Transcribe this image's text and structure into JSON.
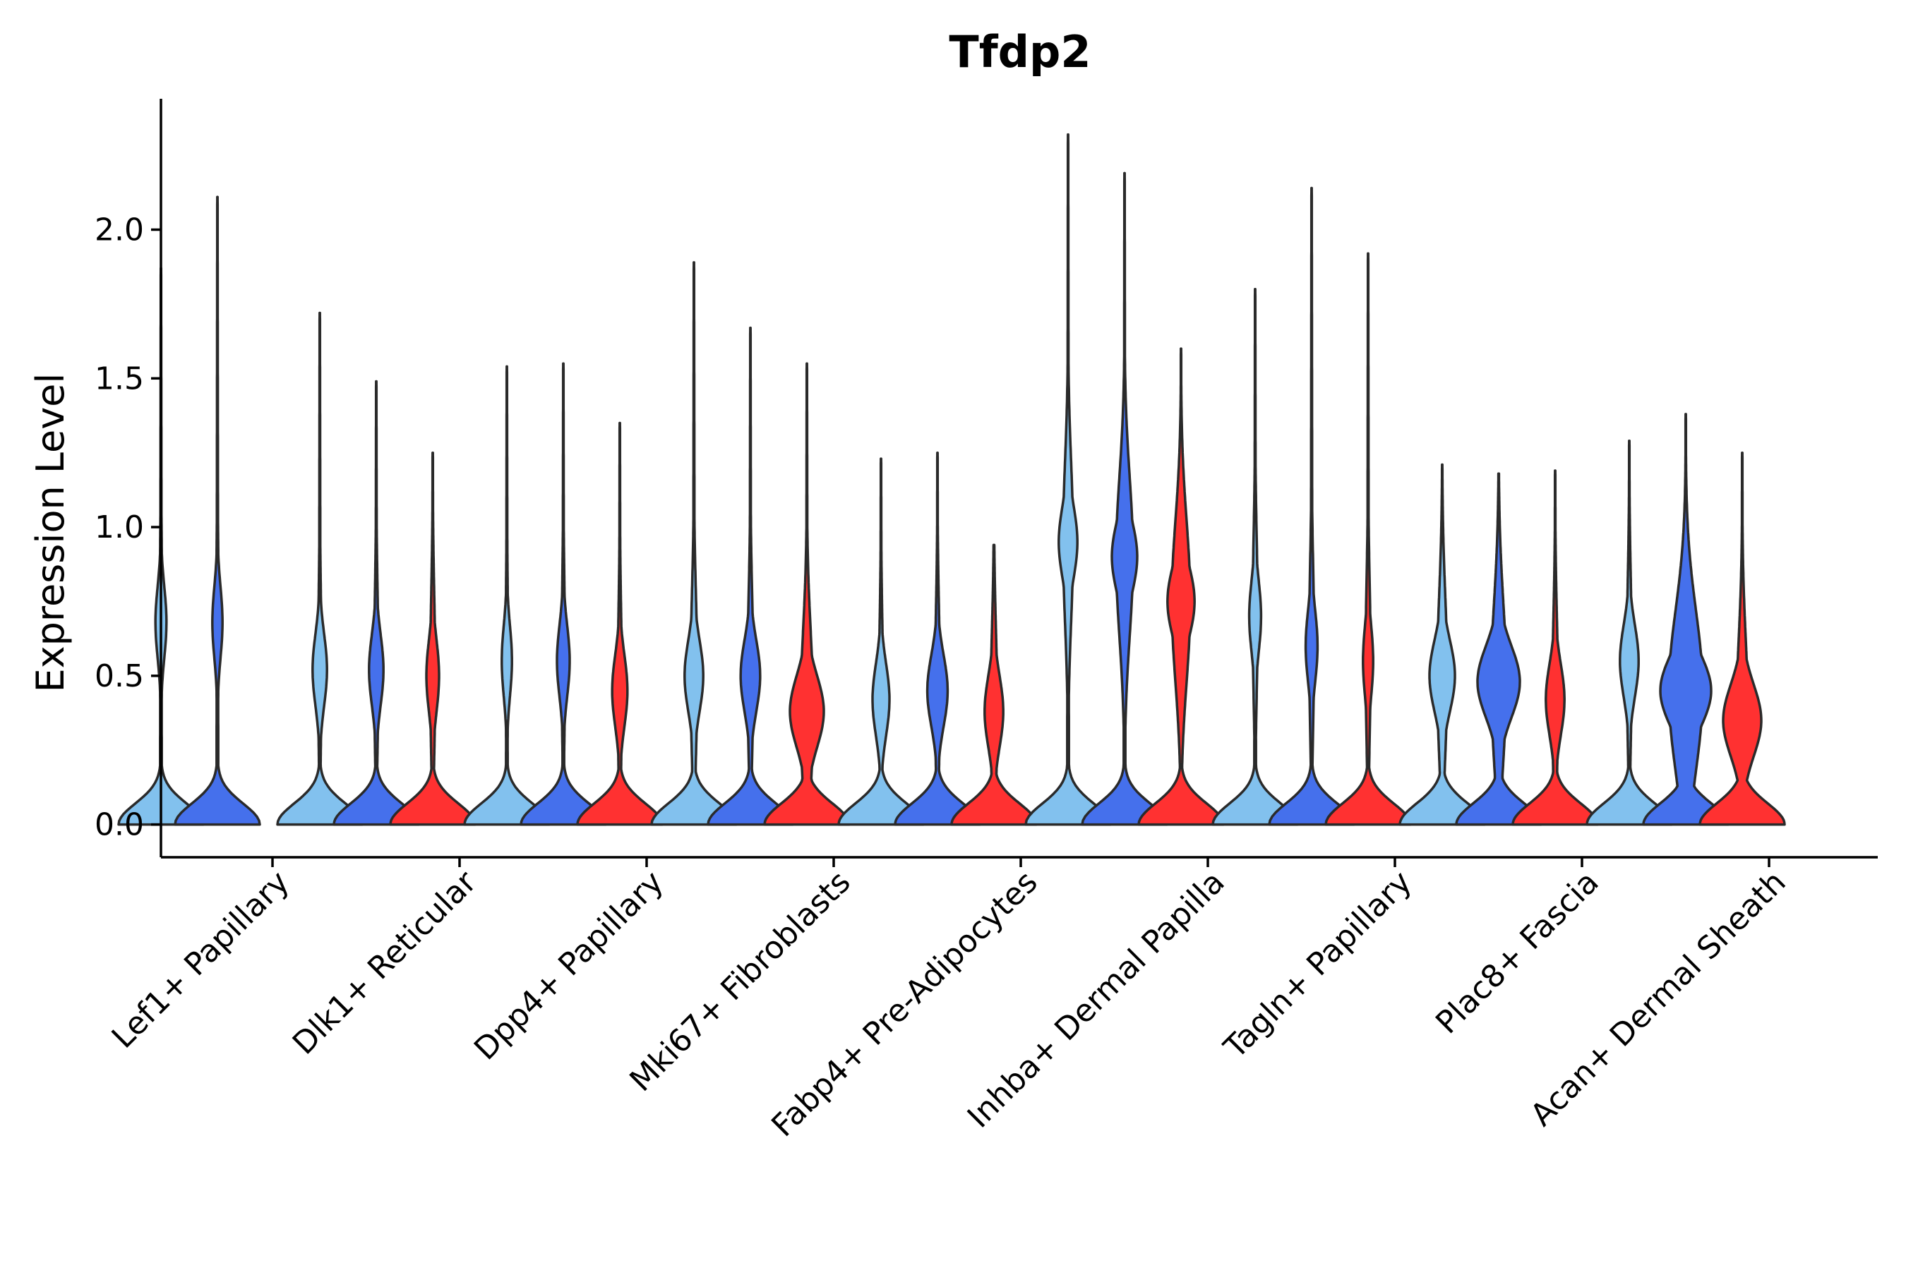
{
  "chart_data": {
    "type": "violin",
    "title": "Tfdp2",
    "xlabel": "",
    "ylabel": "Expression Level",
    "ylim": [
      -0.11,
      2.44
    ],
    "yticks": [
      0.0,
      0.5,
      1.0,
      1.5,
      2.0
    ],
    "ytick_labels": [
      "0.0",
      "0.5",
      "1.0",
      "1.5",
      "2.0"
    ],
    "grid": false,
    "legend": "none",
    "series_colors": [
      "#82C1EE",
      "#4570EC",
      "#FF3131"
    ],
    "categories": [
      "Lef1+ Papillary",
      "Dlk1+ Reticular",
      "Dpp4+ Papillary",
      "Mki67+ Fibroblasts",
      "Fabp4+ Pre-Adipocytes",
      "Inhba+ Dermal Papilla",
      "Tagln+ Papillary",
      "Plac8+ Fascia",
      "Acan+ Dermal Sheath"
    ],
    "groups": [
      {
        "category": "Lef1+ Papillary",
        "violins": [
          {
            "series": 0,
            "max": 1.87,
            "mode": 0.68,
            "mode_width": 0.13,
            "mid_width": 0.03
          },
          {
            "series": 1,
            "max": 2.11,
            "mode": 0.68,
            "mode_width": 0.12,
            "mid_width": 0.03
          }
        ]
      },
      {
        "category": "Dlk1+ Reticular",
        "violins": [
          {
            "series": 0,
            "max": 1.72,
            "mode": 0.52,
            "mode_width": 0.17,
            "mid_width": 0.04
          },
          {
            "series": 1,
            "max": 1.49,
            "mode": 0.52,
            "mode_width": 0.17,
            "mid_width": 0.05
          },
          {
            "series": 2,
            "max": 1.25,
            "mode": 0.5,
            "mode_width": 0.15,
            "mid_width": 0.06
          }
        ]
      },
      {
        "category": "Dpp4+ Papillary",
        "violins": [
          {
            "series": 0,
            "max": 1.54,
            "mode": 0.55,
            "mode_width": 0.12,
            "mid_width": 0.03
          },
          {
            "series": 1,
            "max": 1.55,
            "mode": 0.55,
            "mode_width": 0.15,
            "mid_width": 0.04
          },
          {
            "series": 2,
            "max": 1.35,
            "mode": 0.45,
            "mode_width": 0.18,
            "mid_width": 0.05
          }
        ]
      },
      {
        "category": "Mki67+ Fibroblasts",
        "violins": [
          {
            "series": 0,
            "max": 1.89,
            "mode": 0.5,
            "mode_width": 0.22,
            "mid_width": 0.08
          },
          {
            "series": 1,
            "max": 1.67,
            "mode": 0.5,
            "mode_width": 0.23,
            "mid_width": 0.07
          },
          {
            "series": 2,
            "max": 1.55,
            "mode": 0.38,
            "mode_width": 0.4,
            "mid_width": 0.15
          }
        ]
      },
      {
        "category": "Fabp4+ Pre-Adipocytes",
        "violins": [
          {
            "series": 0,
            "max": 1.23,
            "mode": 0.42,
            "mode_width": 0.2,
            "mid_width": 0.05
          },
          {
            "series": 1,
            "max": 1.25,
            "mode": 0.45,
            "mode_width": 0.24,
            "mid_width": 0.06
          },
          {
            "series": 2,
            "max": 0.94,
            "mode": 0.38,
            "mode_width": 0.22,
            "mid_width": 0.08
          }
        ]
      },
      {
        "category": "Inhba+ Dermal Papilla",
        "violins": [
          {
            "series": 0,
            "max": 2.32,
            "mode": 0.95,
            "mode_width": 0.22,
            "mid_width": 0.12
          },
          {
            "series": 1,
            "max": 2.19,
            "mode": 0.9,
            "mode_width": 0.3,
            "mid_width": 0.2
          },
          {
            "series": 2,
            "max": 1.6,
            "mode": 0.75,
            "mode_width": 0.32,
            "mid_width": 0.22
          }
        ]
      },
      {
        "category": "Tagln+ Papillary",
        "violins": [
          {
            "series": 0,
            "max": 1.8,
            "mode": 0.7,
            "mode_width": 0.14,
            "mid_width": 0.06
          },
          {
            "series": 1,
            "max": 2.14,
            "mode": 0.6,
            "mode_width": 0.14,
            "mid_width": 0.06
          },
          {
            "series": 2,
            "max": 1.92,
            "mode": 0.55,
            "mode_width": 0.12,
            "mid_width": 0.06
          }
        ]
      },
      {
        "category": "Plac8+ Fascia",
        "violins": [
          {
            "series": 0,
            "max": 1.21,
            "mode": 0.5,
            "mode_width": 0.3,
            "mid_width": 0.12
          },
          {
            "series": 1,
            "max": 1.18,
            "mode": 0.48,
            "mode_width": 0.5,
            "mid_width": 0.18
          },
          {
            "series": 2,
            "max": 1.19,
            "mode": 0.42,
            "mode_width": 0.22,
            "mid_width": 0.07
          }
        ]
      },
      {
        "category": "Acan+ Dermal Sheath",
        "violins": [
          {
            "series": 0,
            "max": 1.29,
            "mode": 0.55,
            "mode_width": 0.22,
            "mid_width": 0.06
          },
          {
            "series": 1,
            "max": 1.38,
            "mode": 0.45,
            "mode_width": 0.6,
            "mid_width": 0.4
          },
          {
            "series": 2,
            "max": 1.25,
            "mode": 0.35,
            "mode_width": 0.45,
            "mid_width": 0.14
          }
        ]
      }
    ]
  }
}
